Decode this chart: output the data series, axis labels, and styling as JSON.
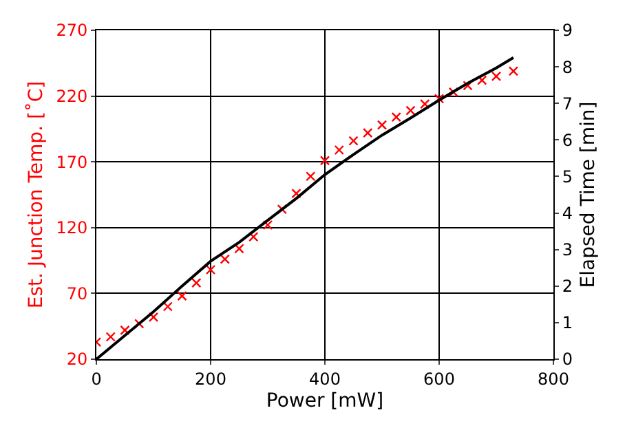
{
  "chart_data": {
    "type": "line",
    "xlabel": "Power [mW]",
    "ylabel": "Est. Junction Temp. [˚C]",
    "y2label": "Elapsed Time [min]",
    "xlim": [
      0,
      800
    ],
    "xticks": [
      0,
      200,
      400,
      600,
      800
    ],
    "ylim": [
      20,
      270
    ],
    "yticks": [
      20,
      70,
      120,
      170,
      220,
      270
    ],
    "y2lim": [
      0,
      9
    ],
    "y2ticks": [
      0,
      1,
      2,
      3,
      4,
      5,
      6,
      7,
      8,
      9
    ],
    "grid": true,
    "series": [
      {
        "type": "scatter",
        "marker": "cross",
        "color": "#ff0000",
        "x": [
          0,
          25,
          50,
          75,
          100,
          125,
          150,
          175,
          200,
          225,
          250,
          275,
          300,
          325,
          350,
          375,
          400,
          425,
          450,
          475,
          500,
          525,
          550,
          575,
          600,
          625,
          650,
          675,
          700,
          730
        ],
        "values": [
          33,
          37,
          42,
          47,
          52,
          60,
          68,
          78,
          88,
          96,
          104,
          113,
          122,
          134,
          146,
          159,
          171,
          179,
          186,
          192,
          198,
          204,
          209,
          214,
          218,
          223,
          228,
          232,
          235,
          239
        ]
      },
      {
        "axis": "y2",
        "color": "#000000",
        "x": [
          0,
          50,
          100,
          150,
          200,
          250,
          300,
          350,
          400,
          450,
          500,
          550,
          600,
          650,
          700,
          730
        ],
        "values": [
          0,
          0.65,
          1.3,
          2.0,
          2.68,
          3.2,
          3.8,
          4.4,
          5.05,
          5.6,
          6.13,
          6.6,
          7.09,
          7.55,
          7.97,
          8.25
        ]
      }
    ]
  }
}
